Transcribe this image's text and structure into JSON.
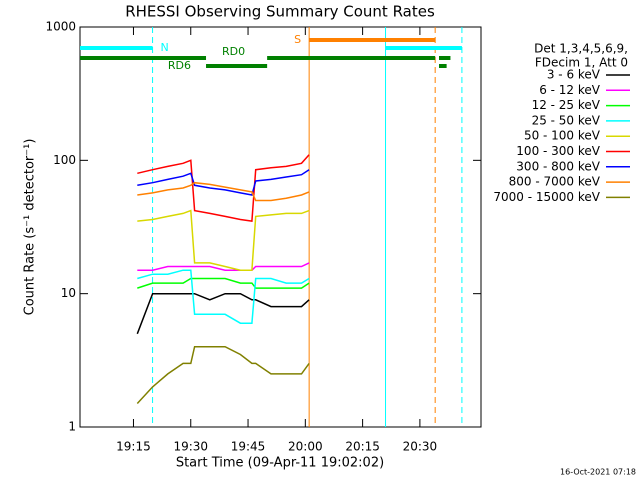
{
  "chart_data": {
    "type": "line",
    "title": "RHESSI Observing Summary Count Rates",
    "x_label": "Start Time (09-Apr-11 19:02:02)",
    "y_label": "Count Rate (s⁻¹ detector⁻¹)",
    "legend_title": [
      "Det 1,3,4,5,6,9,",
      "FDecim 1, Att 0"
    ],
    "timestamp": "16-Oct-2021 07:18",
    "log_y": true,
    "xlim": [
      "19:01",
      "20:46"
    ],
    "xticks": [
      "19:15",
      "19:30",
      "19:45",
      "20:00",
      "20:15",
      "20:30"
    ],
    "ylim": [
      1,
      1000
    ],
    "yticks": [
      1,
      10,
      100,
      1000
    ],
    "x": [
      "19:16",
      "19:20",
      "19:24",
      "19:28",
      "19:30",
      "19:31",
      "19:35",
      "19:39",
      "19:43",
      "19:46",
      "19:47",
      "19:51",
      "19:55",
      "19:59",
      "20:01"
    ],
    "series": [
      {
        "name": "3 - 6 keV",
        "color": "#000000",
        "values": [
          5,
          10,
          10,
          10,
          10,
          10,
          9,
          10,
          10,
          9,
          9,
          8,
          8,
          8,
          9
        ]
      },
      {
        "name": "6 - 12 keV",
        "color": "#ff00ff",
        "values": [
          15,
          15,
          16,
          16,
          16,
          16,
          16,
          15,
          15,
          15,
          16,
          16,
          16,
          16,
          17
        ]
      },
      {
        "name": "12 - 25 keV",
        "color": "#00ff00",
        "values": [
          11,
          12,
          12,
          12,
          13,
          13,
          13,
          13,
          12,
          12,
          11,
          11,
          11,
          11,
          12
        ]
      },
      {
        "name": "25 - 50 keV",
        "color": "#00ffff",
        "values": [
          13,
          14,
          14,
          15,
          15,
          7,
          7,
          7,
          6,
          6,
          13,
          13,
          12,
          12,
          13
        ]
      },
      {
        "name": "50 - 100 keV",
        "color": "#d8d800",
        "values": [
          35,
          36,
          38,
          40,
          42,
          17,
          17,
          16,
          15,
          15,
          38,
          39,
          40,
          40,
          42
        ]
      },
      {
        "name": "100 - 300 keV",
        "color": "#ff0000",
        "values": [
          80,
          85,
          90,
          95,
          100,
          42,
          40,
          38,
          36,
          35,
          85,
          88,
          90,
          95,
          110
        ]
      },
      {
        "name": "300 - 800 keV",
        "color": "#0000ff",
        "values": [
          65,
          68,
          72,
          76,
          80,
          65,
          62,
          60,
          57,
          55,
          70,
          72,
          75,
          78,
          85
        ]
      },
      {
        "name": "800 - 7000 keV",
        "color": "#ff8000",
        "values": [
          55,
          57,
          60,
          62,
          65,
          68,
          66,
          63,
          60,
          58,
          50,
          50,
          52,
          55,
          58
        ]
      },
      {
        "name": "7000 - 15000 keV",
        "color": "#808000",
        "values": [
          1.5,
          2,
          2.5,
          3,
          3,
          4,
          4,
          4,
          3.5,
          3,
          3,
          2.5,
          2.5,
          2.5,
          3
        ]
      }
    ],
    "markers": [
      {
        "x": "19:20",
        "color": "#00ffff",
        "dashed": true
      },
      {
        "x": "20:01",
        "color": "#ff8000",
        "dashed": false
      },
      {
        "x": "20:21",
        "color": "#00ffff",
        "dashed": false
      },
      {
        "x": "20:34",
        "color": "#ff8000",
        "dashed": true
      },
      {
        "x": "20:41",
        "color": "#00ffff",
        "dashed": true
      }
    ],
    "bars": [
      {
        "label": "N",
        "color": "#00ffff",
        "start": "19:01",
        "end": "19:20"
      },
      {
        "color": "#00ffff",
        "start": "20:21",
        "end": "20:41"
      },
      {
        "label": "S",
        "color": "#ff8000",
        "start": "20:01",
        "end": "20:34"
      },
      {
        "label": "RD0",
        "color": "#008000",
        "start": "19:01",
        "end": "19:34"
      },
      {
        "label": "RD6",
        "color": "#008000",
        "start": "19:34",
        "end": "19:50"
      },
      {
        "color": "#008000",
        "start": "19:50",
        "end": "20:34"
      },
      {
        "color": "#008000",
        "start": "20:35",
        "end": "20:38"
      },
      {
        "color": "#008000",
        "start": "20:35",
        "end": "20:37"
      }
    ]
  }
}
